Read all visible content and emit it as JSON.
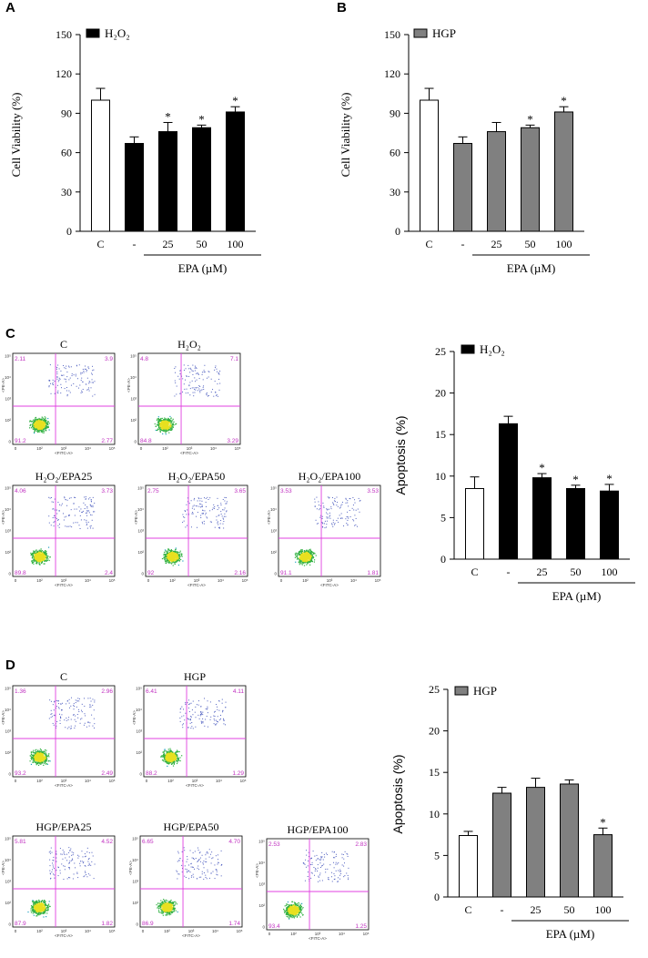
{
  "panels": {
    "A": "A",
    "B": "B",
    "C": "C",
    "D": "D"
  },
  "colors": {
    "black_bar": "#000000",
    "gray_bar": "#808080",
    "control_bar": "#ffffff",
    "gate": "#e040e0",
    "quad_text": "#c030c0"
  },
  "chart_data": [
    {
      "id": "A",
      "type": "bar",
      "legend": "H₂O₂",
      "ylabel": "Cell Viability  (%)",
      "categories": [
        "C",
        "-",
        "25",
        "50",
        "100"
      ],
      "values": [
        100,
        67,
        76,
        79,
        91
      ],
      "errors": [
        9,
        5,
        7,
        2,
        4
      ],
      "significant": [
        false,
        false,
        true,
        true,
        true
      ],
      "star": "*",
      "yticks": [
        "0",
        "30",
        "60",
        "90",
        "120",
        "150"
      ],
      "ylim": [
        0,
        150
      ],
      "group_label": "EPA (µM)",
      "series_color": "black"
    },
    {
      "id": "B",
      "type": "bar",
      "legend": "HGP",
      "ylabel": "Cell Viability  (%)",
      "categories": [
        "C",
        "-",
        "25",
        "50",
        "100"
      ],
      "values": [
        100,
        67,
        76,
        79,
        91
      ],
      "errors": [
        9,
        5,
        7,
        2,
        4
      ],
      "significant": [
        false,
        false,
        false,
        true,
        true
      ],
      "star": "*",
      "yticks": [
        "0",
        "30",
        "60",
        "90",
        "120",
        "150"
      ],
      "ylim": [
        0,
        150
      ],
      "group_label": "EPA (µM)",
      "series_color": "gray"
    },
    {
      "id": "C-bar",
      "type": "bar",
      "legend": "H₂O₂",
      "ylabel": "Apoptosis (%)",
      "categories": [
        "C",
        "-",
        "25",
        "50",
        "100"
      ],
      "values": [
        8.5,
        16.3,
        9.8,
        8.5,
        8.2
      ],
      "errors": [
        1.4,
        0.9,
        0.5,
        0.4,
        0.8
      ],
      "significant": [
        false,
        false,
        true,
        true,
        true
      ],
      "star": "*",
      "yticks": [
        "0",
        "5",
        "10",
        "15",
        "20",
        "25"
      ],
      "ylim": [
        0,
        25
      ],
      "group_label": "EPA (µM)",
      "series_color": "black"
    },
    {
      "id": "D-bar",
      "type": "bar",
      "legend": "HGP",
      "ylabel": "Apoptosis (%)",
      "categories": [
        "C",
        "-",
        "25",
        "50",
        "100"
      ],
      "values": [
        7.4,
        12.5,
        13.2,
        13.6,
        7.5
      ],
      "errors": [
        0.5,
        0.7,
        1.1,
        0.5,
        0.8
      ],
      "significant": [
        false,
        false,
        false,
        false,
        true
      ],
      "star": "*",
      "yticks": [
        "0",
        "5",
        "10",
        "15",
        "20",
        "25"
      ],
      "ylim": [
        0,
        25
      ],
      "group_label": "EPA (µM)",
      "series_color": "gray"
    }
  ],
  "flow_plots": [
    {
      "id": "C1",
      "title": "C",
      "ul": "2.11",
      "ur": "3.9",
      "ll": "91.2",
      "lr": "2.77"
    },
    {
      "id": "C2",
      "title": "H₂O₂",
      "ul": "4.8",
      "ur": "7.1",
      "ll": "84.8",
      "lr": "3.29"
    },
    {
      "id": "C3",
      "title": "H₂O₂/EPA25",
      "ul": "4.06",
      "ur": "3.73",
      "ll": "89.8",
      "lr": "2.4"
    },
    {
      "id": "C4",
      "title": "H₂O₂/EPA50",
      "ul": "2.75",
      "ur": "3.65",
      "ll": "92",
      "lr": "2.16"
    },
    {
      "id": "C5",
      "title": "H₂O₂/EPA100",
      "ul": "3.53",
      "ur": "3.53",
      "ll": "91.1",
      "lr": "1.81"
    },
    {
      "id": "D1",
      "title": "C",
      "ul": "1.36",
      "ur": "2.96",
      "ll": "93.2",
      "lr": "2.49"
    },
    {
      "id": "D2",
      "title": "HGP",
      "ul": "6.41",
      "ur": "4.11",
      "ll": "88.2",
      "lr": "1.29"
    },
    {
      "id": "D3",
      "title": "HGP/EPA25",
      "ul": "5.81",
      "ur": "4.52",
      "ll": "87.9",
      "lr": "1.82"
    },
    {
      "id": "D4",
      "title": "HGP/EPA50",
      "ul": "6.65",
      "ur": "4.70",
      "ll": "86.9",
      "lr": "1.74"
    },
    {
      "id": "D5",
      "title": "HGP/EPA100",
      "ul": "2.53",
      "ur": "2.83",
      "ll": "93.4",
      "lr": "1.25"
    }
  ],
  "flow_axes": {
    "x_label": "<FITC-A>",
    "y_label": "<PE-A>",
    "x_ticks": [
      "0",
      "10²",
      "10³",
      "10⁴",
      "10⁵"
    ],
    "y_ticks": [
      "0",
      "10²",
      "10³",
      "10⁴",
      "10⁵"
    ]
  }
}
